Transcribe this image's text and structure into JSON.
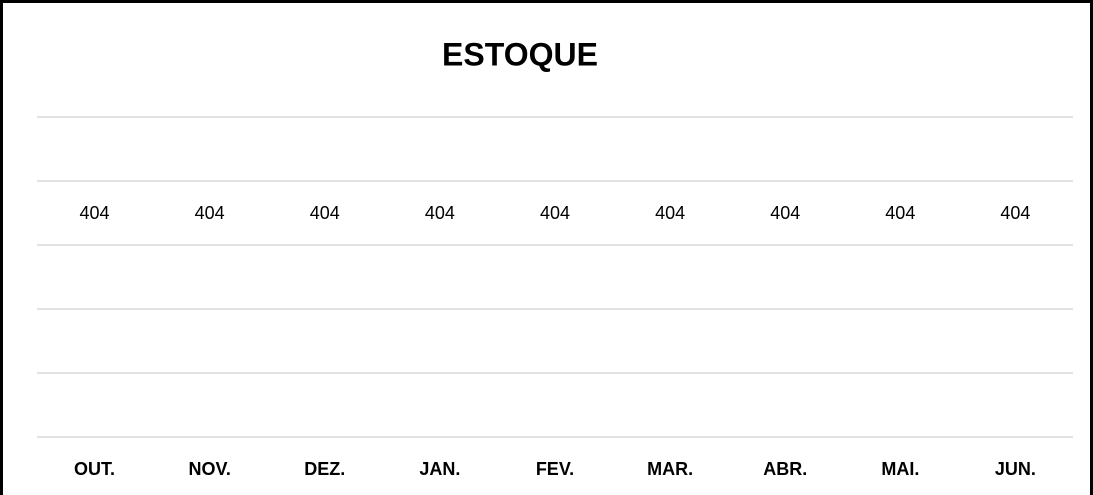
{
  "chart_data": {
    "type": "line",
    "title": "ESTOQUE",
    "categories": [
      "OUT.",
      "NOV.",
      "DEZ.",
      "JAN.",
      "FEV.",
      "MAR.",
      "ABR.",
      "MAI.",
      "JUN."
    ],
    "series": [
      {
        "name": "ESTOQUE",
        "color": "#4472c4",
        "values": [
          404,
          404,
          404,
          404,
          404,
          404,
          404,
          404,
          404
        ]
      }
    ],
    "ylim": [
      401,
      406
    ],
    "yticks": [
      401,
      402,
      403,
      404,
      405,
      406
    ],
    "grid": true
  }
}
